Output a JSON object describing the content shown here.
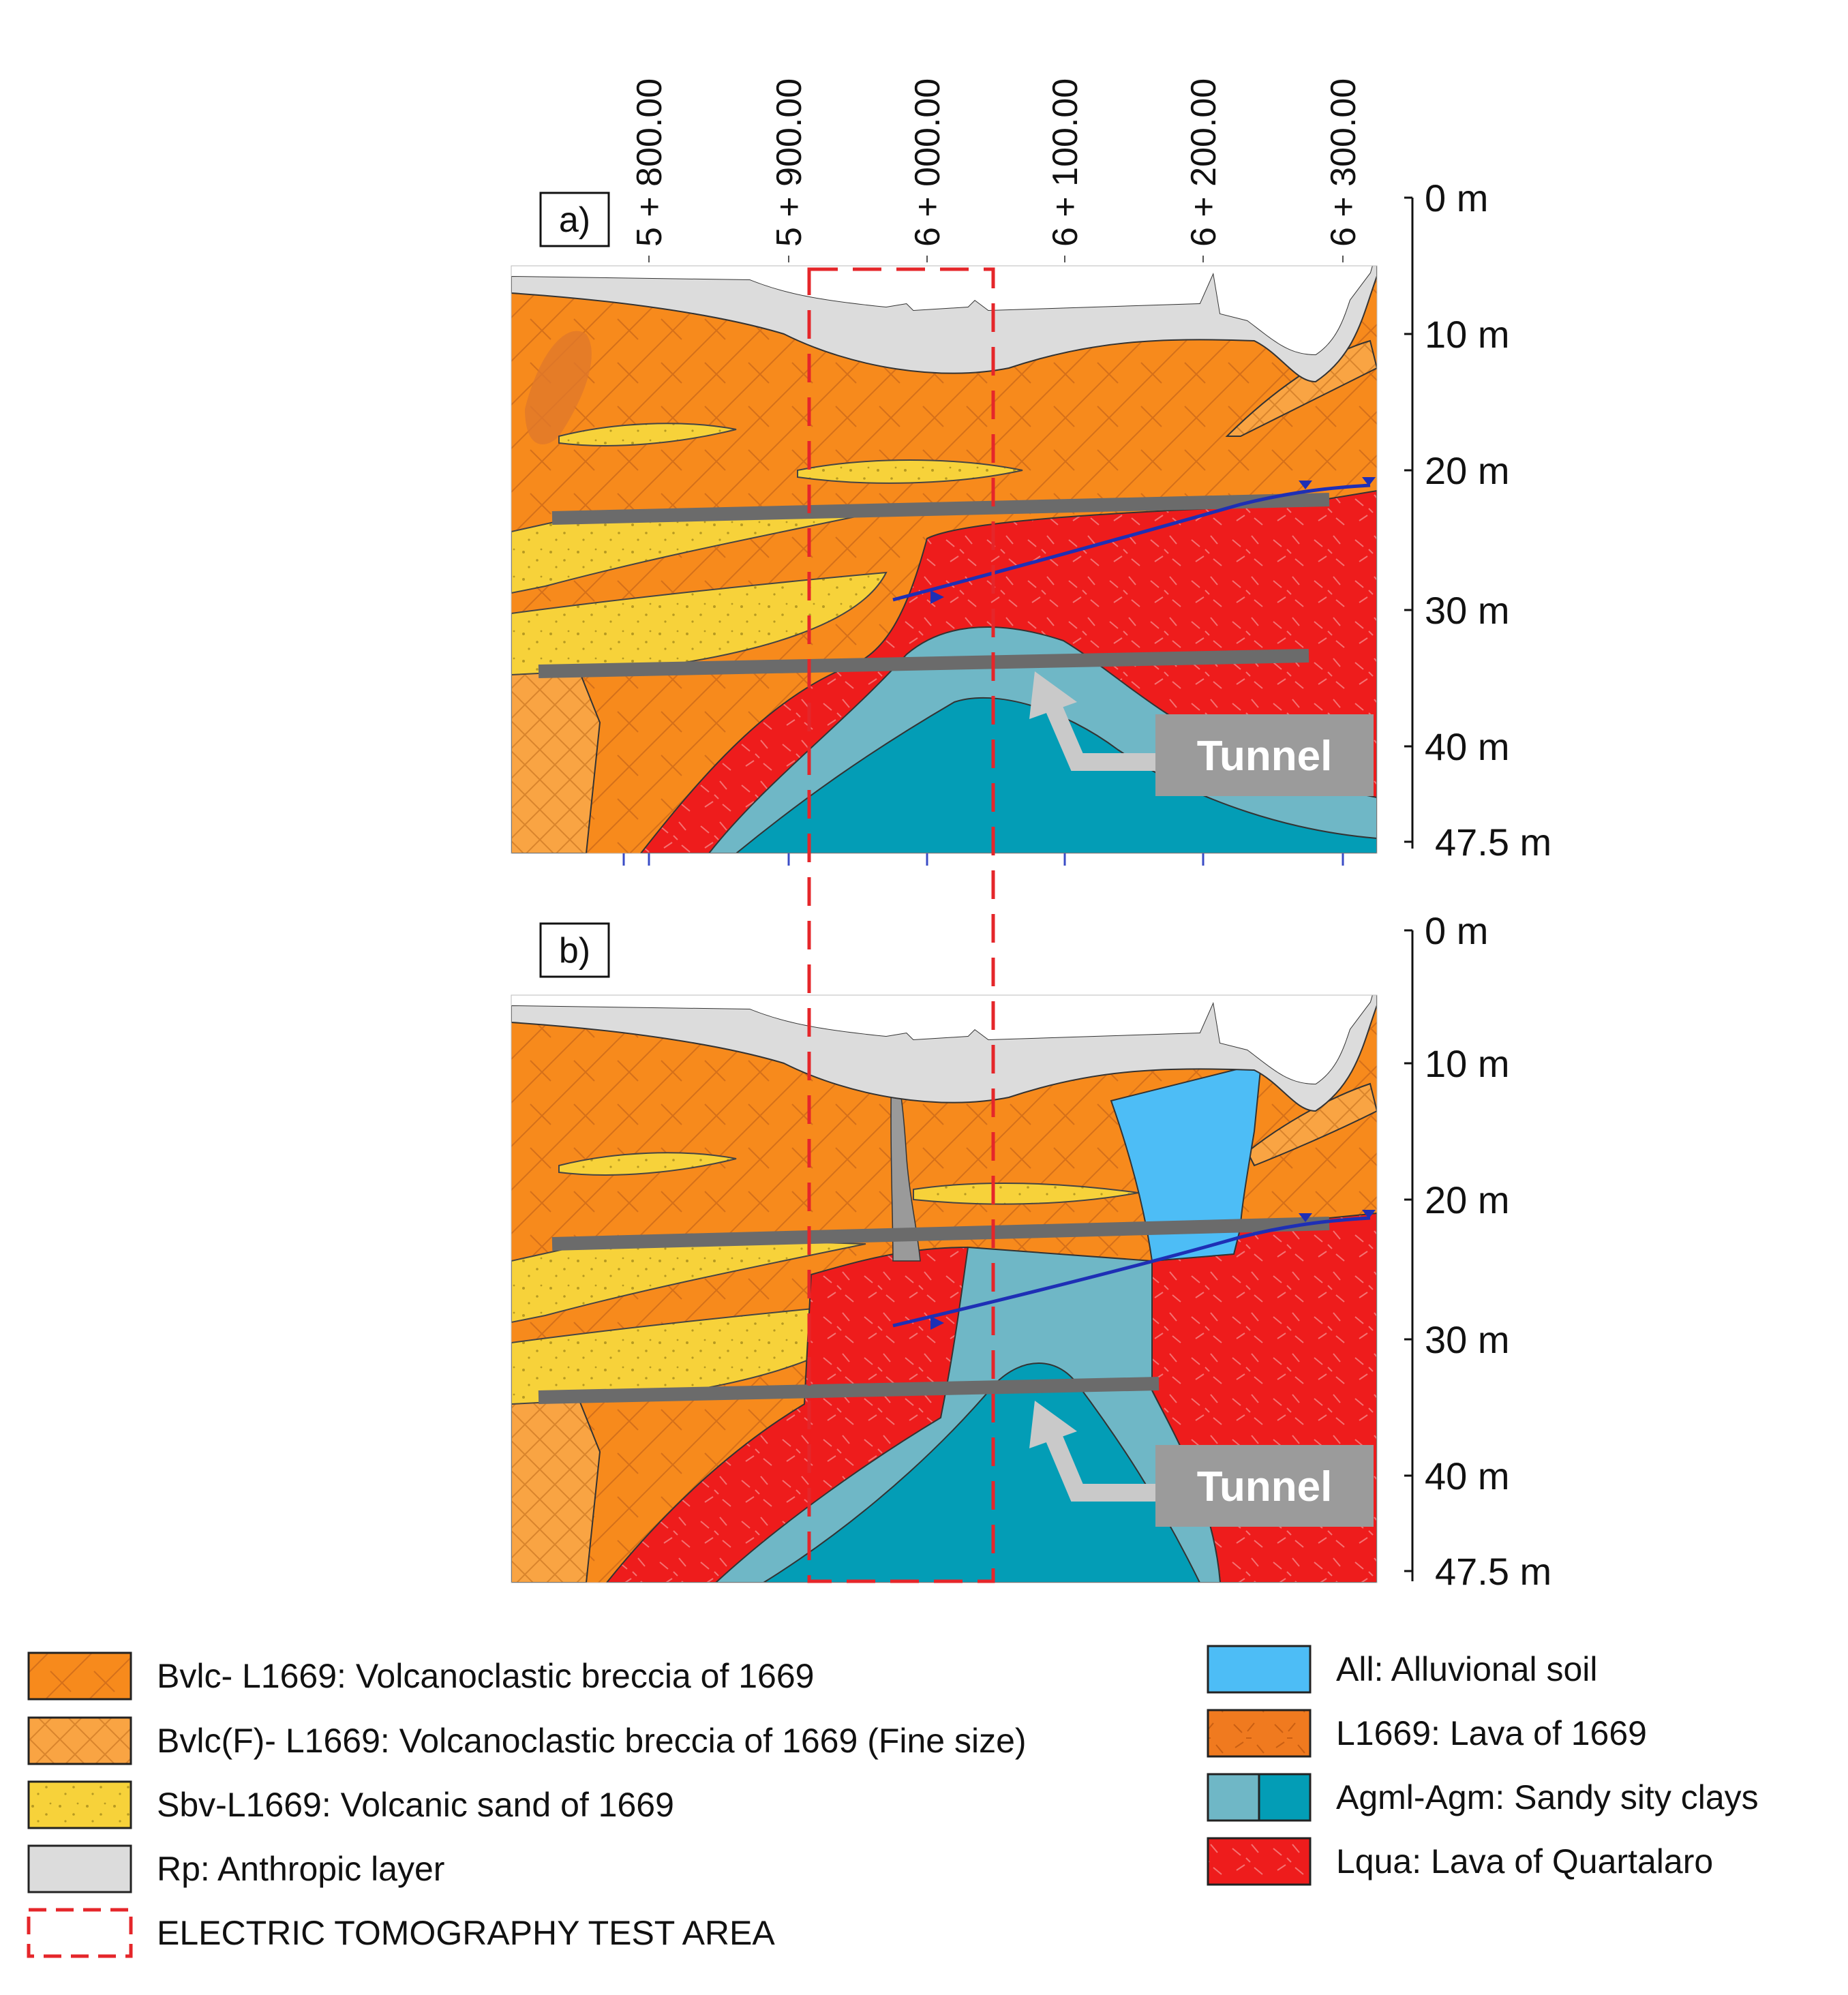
{
  "figure": {
    "stations": [
      "5 + 800.00",
      "5 + 900.00",
      "6 + 000.00",
      "6 + 100.00",
      "6 + 200.00",
      "6 + 300.00"
    ],
    "depth_ticks": [
      "0 m",
      "10 m",
      "20 m",
      "30 m",
      "40 m",
      "47.5 m"
    ],
    "panels": [
      {
        "label": "a)",
        "tunnel_label": "Tunnel"
      },
      {
        "label": "b)",
        "tunnel_label": "Tunnel"
      }
    ],
    "colors": {
      "breccia": "#F78A1C",
      "breccia_fine": "#F9A443",
      "sand": "#F7D23A",
      "anthropic": "#DCDCDC",
      "alluvial": "#4DBDF6",
      "lava1669": "#F07A1F",
      "clay_light": "#6FB7C6",
      "clay_dark": "#039DB6",
      "quartalaro": "#EE1C1C",
      "test_area": "#E5262A",
      "tunnel": "#6B6B6B",
      "water": "#1E2FB5"
    }
  },
  "legend": {
    "left": [
      {
        "icon": "breccia-swatch",
        "label": "Bvlc- L1669: Volcanoclastic breccia of 1669"
      },
      {
        "icon": "breccia-fine-swatch",
        "label": "Bvlc(F)- L1669: Volcanoclastic breccia of 1669 (Fine size)"
      },
      {
        "icon": "sand-swatch",
        "label": "Sbv-L1669: Volcanic sand of 1669"
      },
      {
        "icon": "anthropic-swatch",
        "label": "Rp: Anthropic layer"
      },
      {
        "icon": "test-area-swatch",
        "label": "ELECTRIC TOMOGRAPHY TEST AREA"
      }
    ],
    "right": [
      {
        "icon": "alluvial-swatch",
        "label": "All: Alluvional soil"
      },
      {
        "icon": "lava1669-swatch",
        "label": "L1669: Lava of 1669"
      },
      {
        "icon": "clay-swatch",
        "label": "Agml-Agm: Sandy sity clays"
      },
      {
        "icon": "quartalaro-swatch",
        "label": "Lqua: Lava of Quartalaro"
      }
    ]
  }
}
